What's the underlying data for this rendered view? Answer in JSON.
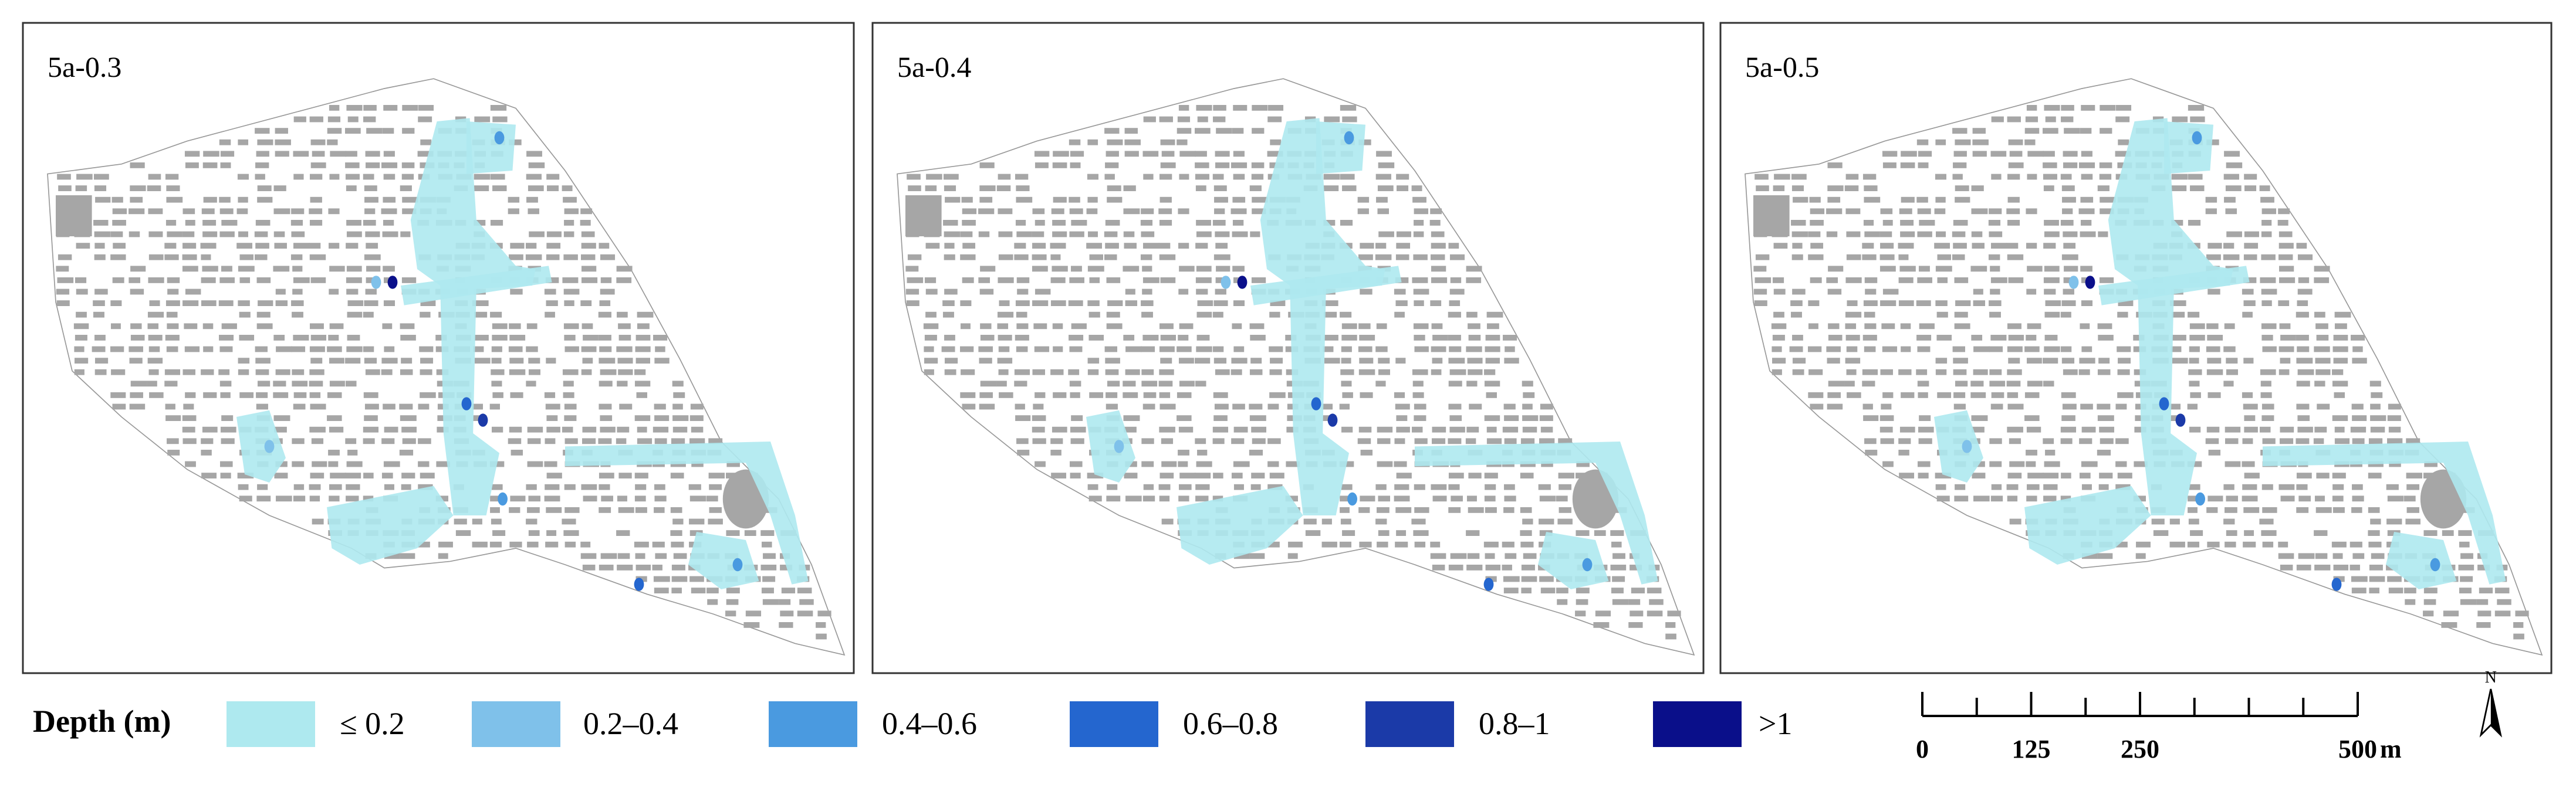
{
  "panels": [
    {
      "title": "5a-0.3"
    },
    {
      "title": "5a-0.4"
    },
    {
      "title": "5a-0.5"
    }
  ],
  "legend": {
    "title": "Depth (m)",
    "items": [
      {
        "label": "≤ 0.2",
        "color": "#aee9ef"
      },
      {
        "label": "0.2–0.4",
        "color": "#7fc1ea"
      },
      {
        "label": "0.4–0.6",
        "color": "#4a9ae0"
      },
      {
        "label": "0.6–0.8",
        "color": "#2466cf"
      },
      {
        "label": "0.8–1",
        "color": "#1b3aa8"
      },
      {
        "label": ">1",
        "color": "#0a0f8a"
      }
    ]
  },
  "scale_bar": {
    "ticks": [
      0,
      125,
      250,
      500
    ],
    "unit": "m"
  },
  "north_arrow": "N"
}
